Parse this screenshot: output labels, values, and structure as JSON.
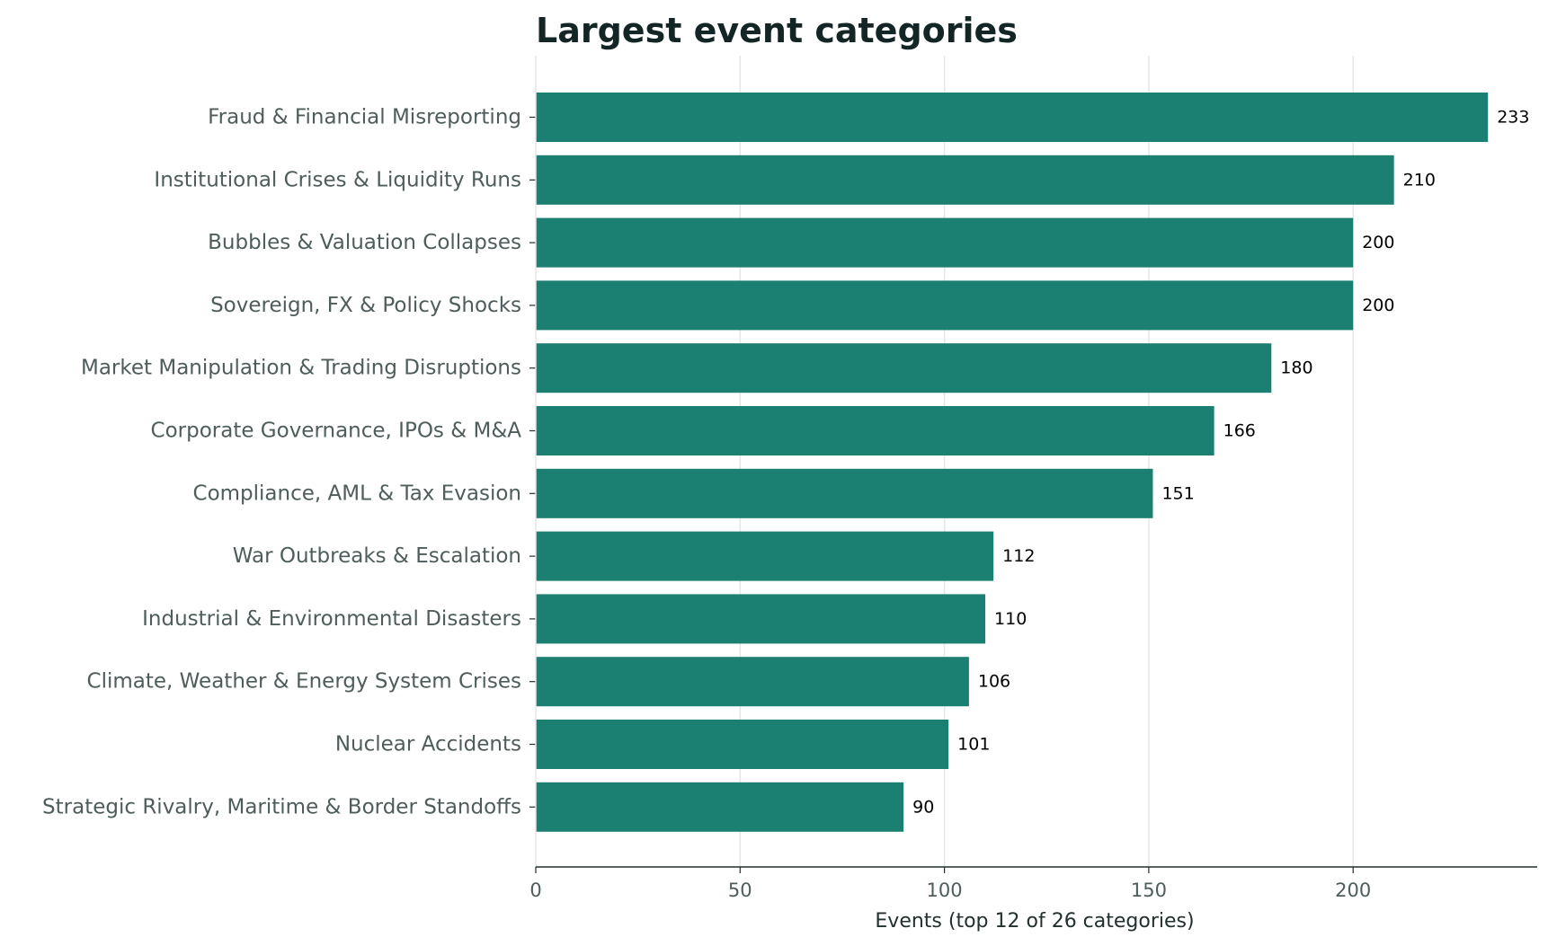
{
  "chart_data": {
    "type": "bar",
    "orientation": "horizontal",
    "title": "Largest event categories",
    "xlabel": "Events (top 12 of 26 categories)",
    "ylabel": "",
    "categories": [
      "Fraud & Financial Misreporting",
      "Institutional Crises & Liquidity Runs",
      "Bubbles & Valuation Collapses",
      "Sovereign, FX & Policy Shocks",
      "Market Manipulation & Trading Disruptions",
      "Corporate Governance, IPOs & M&A",
      "Compliance, AML & Tax Evasion",
      "War Outbreaks & Escalation",
      "Industrial & Environmental Disasters",
      "Climate, Weather & Energy System Crises",
      "Nuclear Accidents",
      "Strategic Rivalry, Maritime & Border Standoffs"
    ],
    "values": [
      233,
      210,
      200,
      200,
      180,
      166,
      151,
      112,
      110,
      106,
      101,
      90
    ],
    "data_labels": [
      "233",
      "210",
      "200",
      "200",
      "180",
      "166",
      "151",
      "112",
      "110",
      "106",
      "101",
      "90"
    ],
    "xticks": [
      0,
      50,
      100,
      150,
      200
    ],
    "xtick_labels": [
      "0",
      "50",
      "100",
      "150",
      "200"
    ],
    "xlim": [
      0,
      244.65
    ],
    "grid": "vertical gridlines",
    "legend": "none",
    "colors": {
      "bar": "#1b7f72",
      "grid": "#e6e6e6",
      "axis": "#22302f",
      "title": "#132524",
      "label": "#4e5d5c",
      "value_label": "#000000"
    }
  }
}
